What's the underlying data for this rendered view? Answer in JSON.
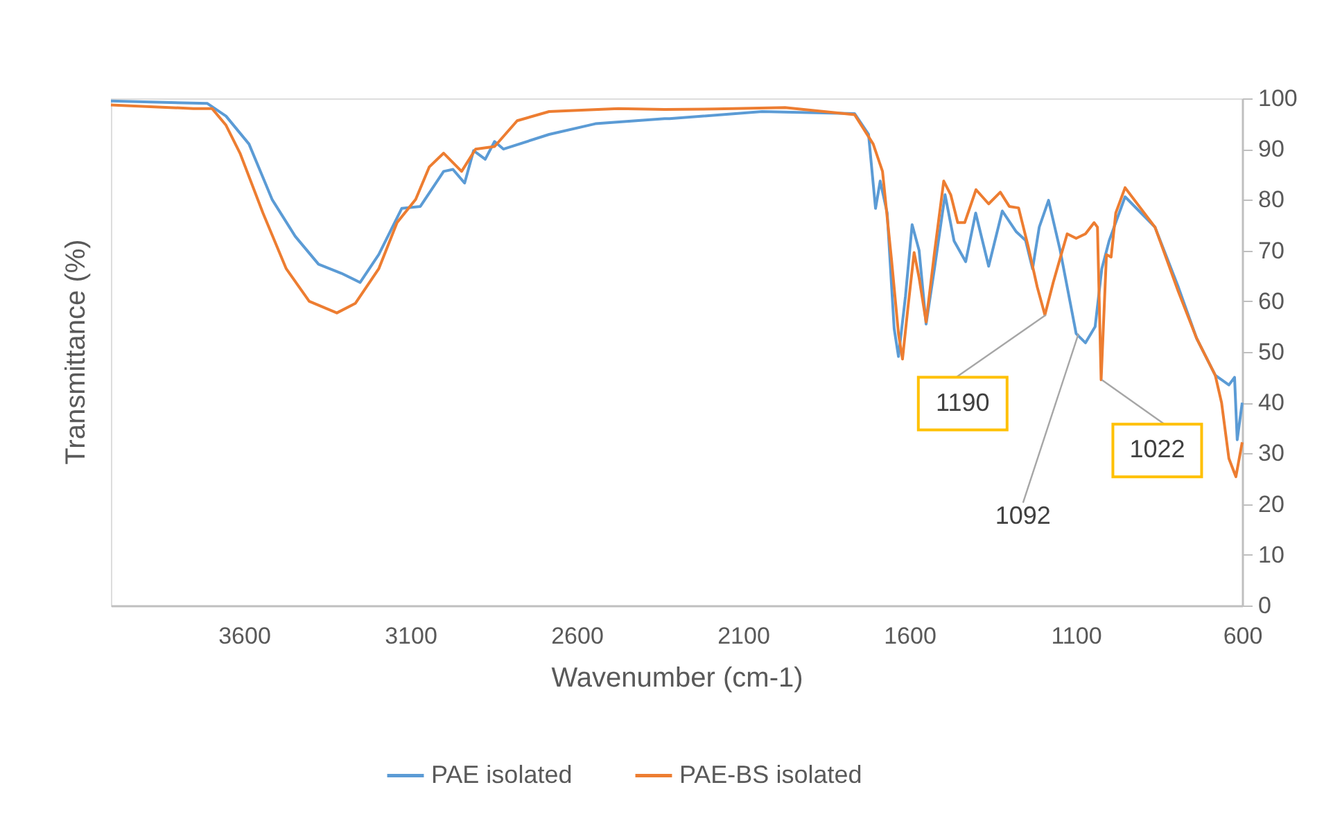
{
  "chart_data": {
    "type": "line",
    "xlabel": "Wavenumber (cm-1)",
    "ylabel": "Transmittance (%)",
    "xlim": [
      4000,
      600
    ],
    "xticks": [
      3600,
      3100,
      2600,
      2100,
      1600,
      1100,
      600
    ],
    "ylim": [
      0,
      100
    ],
    "yticks": [
      0,
      10,
      20,
      30,
      40,
      50,
      60,
      70,
      80,
      90,
      100
    ],
    "grid": false,
    "legend": "bottom",
    "line_style": "solid",
    "marker": "none",
    "series": [
      {
        "name": "PAE isolated",
        "color": "#5b9bd5",
        "x": [
          4000,
          3710,
          3654,
          3585,
          3515,
          3446,
          3376,
          3307,
          3251,
          3195,
          3126,
          3070,
          3000,
          2972,
          2937,
          2910,
          2875,
          2847,
          2820,
          2683,
          2544,
          2336,
          2321,
          2043,
          1765,
          1723,
          1702,
          1688,
          1667,
          1646,
          1633,
          1612,
          1592,
          1571,
          1550,
          1525,
          1493,
          1466,
          1431,
          1401,
          1362,
          1321,
          1279,
          1251,
          1230,
          1210,
          1182,
          1147,
          1099,
          1071,
          1042,
          1022,
          1000,
          952,
          862,
          792,
          737,
          681,
          640,
          623,
          615,
          600
        ],
        "values": [
          99.5,
          99,
          96.5,
          91,
          80,
          72.8,
          67.3,
          65.5,
          63.7,
          69.2,
          78.3,
          78.7,
          85.6,
          86,
          83.3,
          89.7,
          88,
          91.5,
          90,
          92.9,
          95,
          96,
          96,
          97.4,
          97,
          92.9,
          78.3,
          83.7,
          77.4,
          54.6,
          49.1,
          61,
          75.1,
          70,
          55.5,
          66.4,
          81,
          71.9,
          67.8,
          77.4,
          66.9,
          77.8,
          73.7,
          72,
          66.4,
          74.6,
          79.9,
          70,
          53.6,
          51.8,
          55,
          66.4,
          71.9,
          80.6,
          74.6,
          62.8,
          52.7,
          45.4,
          43.5,
          45,
          32.7,
          40
        ]
      },
      {
        "name": "PAE-BS isolated",
        "color": "#ed7d31",
        "x": [
          4000,
          3752,
          3696,
          3654,
          3612,
          3543,
          3473,
          3404,
          3321,
          3265,
          3195,
          3140,
          3084,
          3043,
          3000,
          2946,
          2904,
          2847,
          2779,
          2683,
          2475,
          2336,
          2182,
          1974,
          1765,
          1709,
          1681,
          1654,
          1633,
          1621,
          1604,
          1586,
          1571,
          1550,
          1525,
          1497,
          1476,
          1455,
          1434,
          1400,
          1362,
          1327,
          1300,
          1272,
          1244,
          1216,
          1193,
          1168,
          1126,
          1099,
          1071,
          1045,
          1035,
          1024,
          1008,
          994,
          980,
          952,
          862,
          792,
          737,
          681,
          662,
          640,
          619,
          600
        ],
        "values": [
          98.7,
          98,
          98,
          94.7,
          89.2,
          77.4,
          66.4,
          60,
          57.7,
          59.6,
          66.4,
          75.5,
          80.1,
          86.5,
          89.2,
          85.6,
          90,
          90.5,
          95.6,
          97.4,
          98,
          97.8,
          97.9,
          98.2,
          96.8,
          91,
          85.6,
          68.2,
          53.6,
          48.6,
          59.1,
          69.6,
          64.6,
          55.9,
          69.5,
          83.7,
          81,
          75.5,
          75.5,
          82,
          79.2,
          81.5,
          78.7,
          78.4,
          71,
          62.8,
          57.3,
          63.7,
          73.3,
          72.4,
          73.3,
          75.5,
          74.6,
          44.5,
          69.2,
          68.7,
          77.4,
          82.4,
          74.6,
          61.9,
          52.7,
          45.4,
          40,
          29,
          25.4,
          32.2
        ]
      }
    ],
    "annotations": [
      {
        "text": "1190",
        "x": 1190,
        "y": 57.3
      },
      {
        "text": "1092",
        "x": 1092,
        "y": 53.6
      },
      {
        "text": "1022",
        "x": 1022,
        "y": 44.5
      }
    ]
  }
}
